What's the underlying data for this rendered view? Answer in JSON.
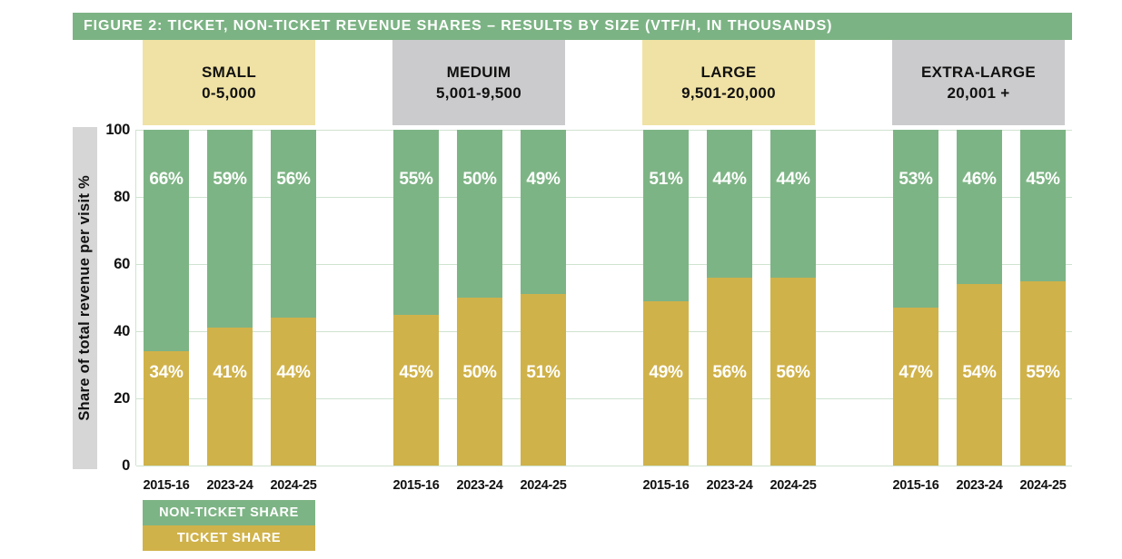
{
  "title": "FIGURE 2: TICKET, NON-TICKET REVENUE SHARES – RESULTS BY SIZE (VTF/H, IN THOUSANDS)",
  "colors": {
    "title_bar_green": "#7cb384",
    "bar_green": "#7db485",
    "bar_gold": "#d0b24a",
    "header_yellow": "#f0e2a4",
    "header_gray": "#cbcbcd",
    "axis_strip_gray": "#d6d6d7",
    "gridline_green": "#cfe3d0",
    "text_black": "#111111",
    "text_white": "#ffffff"
  },
  "chart_data": {
    "type": "bar",
    "stacked": true,
    "title": "FIGURE 2: TICKET, NON-TICKET REVENUE SHARES – RESULTS BY SIZE (VTF/H, IN THOUSANDS)",
    "xlabel": "",
    "ylabel": "Share of total revenue per visit %",
    "ylim": [
      0,
      100
    ],
    "yticks": [
      100,
      80,
      60,
      40,
      20,
      0
    ],
    "grid": true,
    "legend_position": "bottom-left",
    "legend": [
      {
        "label": "NON-TICKET SHARE",
        "color": "#7db485"
      },
      {
        "label": "TICKET SHARE",
        "color": "#d0b24a"
      }
    ],
    "groups": [
      {
        "name": "SMALL",
        "range": "0-5,000",
        "header_bg": "#f0e2a4",
        "years": [
          "2015-16",
          "2023-24",
          "2024-25"
        ],
        "non_ticket_share": [
          66,
          59,
          56
        ],
        "ticket_share": [
          34,
          41,
          44
        ]
      },
      {
        "name": "MEDUIM",
        "range": "5,001-9,500",
        "header_bg": "#cbcbcd",
        "years": [
          "2015-16",
          "2023-24",
          "2024-25"
        ],
        "non_ticket_share": [
          55,
          50,
          49
        ],
        "ticket_share": [
          45,
          50,
          51
        ]
      },
      {
        "name": "LARGE",
        "range": "9,501-20,000",
        "header_bg": "#f0e2a4",
        "years": [
          "2015-16",
          "2023-24",
          "2024-25"
        ],
        "non_ticket_share": [
          51,
          44,
          44
        ],
        "ticket_share": [
          49,
          56,
          56
        ]
      },
      {
        "name": "EXTRA-LARGE",
        "range": "20,001 +",
        "header_bg": "#cbcbcd",
        "years": [
          "2015-16",
          "2023-24",
          "2024-25"
        ],
        "non_ticket_share": [
          53,
          46,
          45
        ],
        "ticket_share": [
          47,
          54,
          55
        ]
      }
    ]
  }
}
